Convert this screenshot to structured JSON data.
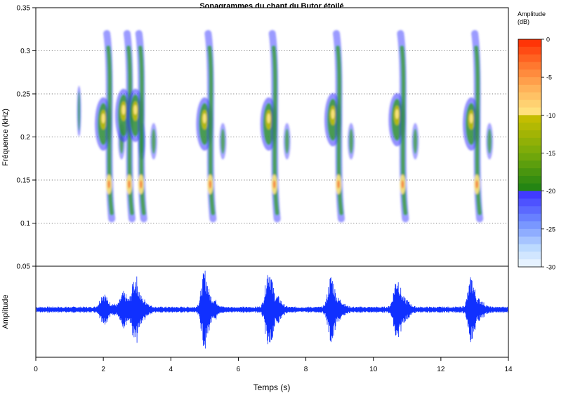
{
  "chart_data": [
    {
      "type": "heatmap",
      "title": "Sonagrammes du chant du Butor étoilé",
      "ylabel": "Fréquence (kHz)",
      "ylim": [
        0.05,
        0.35
      ],
      "xlim": [
        0,
        14
      ],
      "yticks": [
        "0.05",
        "0.1",
        "0.15",
        "0.2",
        "0.25",
        "0.3",
        "0.35"
      ],
      "grid": true,
      "colorbar": {
        "title_line1": "Amplitude",
        "title_line2": "(dB)",
        "ticks": [
          "0",
          "-5",
          "-10",
          "-15",
          "-20",
          "-25",
          "-30"
        ],
        "range": [
          -30,
          0
        ],
        "colors": {
          "high": "#ff2a00",
          "mid": "#ffe680",
          "olive": "#c8c000",
          "green": "#2e9f18",
          "blue": "#3a35ff",
          "low": "#eef6ff"
        }
      },
      "notes": [
        {
          "t": 1.28,
          "onset_freq": 0.23
        },
        {
          "t": 2.0,
          "onset_freq": 0.215
        },
        {
          "t": 2.6,
          "onset_freq": 0.225
        },
        {
          "t": 2.95,
          "onset_freq": 0.225
        },
        {
          "t": 5.0,
          "onset_freq": 0.215
        },
        {
          "t": 6.9,
          "onset_freq": 0.215
        },
        {
          "t": 8.8,
          "onset_freq": 0.22
        },
        {
          "t": 10.7,
          "onset_freq": 0.22
        },
        {
          "t": 12.9,
          "onset_freq": 0.215
        }
      ]
    },
    {
      "type": "line",
      "ylabel": "Amplitude",
      "xlabel": "Temps (s)",
      "xlim": [
        0,
        14
      ],
      "xticks": [
        "0",
        "2",
        "4",
        "6",
        "8",
        "10",
        "12",
        "14"
      ],
      "series": [
        {
          "color": "#1030ff",
          "envelope_bursts": [
            {
              "t": 2.0,
              "amp": 0.35
            },
            {
              "t": 2.6,
              "amp": 0.35
            },
            {
              "t": 2.95,
              "amp": 0.7
            },
            {
              "t": 5.0,
              "amp": 0.85
            },
            {
              "t": 6.9,
              "amp": 1.0
            },
            {
              "t": 8.75,
              "amp": 0.75
            },
            {
              "t": 10.7,
              "amp": 0.75
            },
            {
              "t": 12.9,
              "amp": 0.7
            }
          ]
        }
      ]
    }
  ]
}
